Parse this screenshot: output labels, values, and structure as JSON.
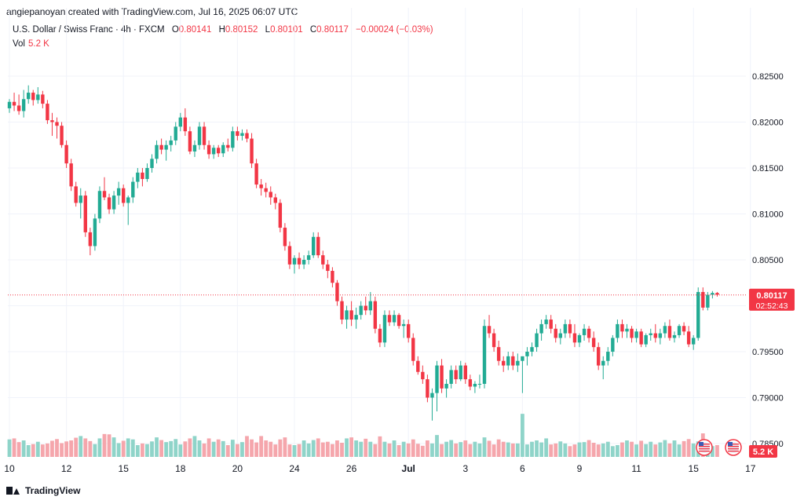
{
  "credit": "angiepanoyan created with TradingView.com, Jul 16, 2025 06:07 UTC",
  "legend": {
    "symbol": "U.S. Dollar / Swiss Franc · 4h · FXCM",
    "open_key": "O",
    "open": "0.80141",
    "high_key": "H",
    "high": "0.80152",
    "low_key": "L",
    "low": "0.80101",
    "close_key": "C",
    "close": "0.80117",
    "change": "−0.00024 (−0.03%)",
    "vol_label": "Vol",
    "vol_value": "5.2 K"
  },
  "last_price": {
    "label": "0.80117",
    "countdown": "02:52:43"
  },
  "volume_badge": "5.2 K",
  "footer_brand": "TradingView",
  "colors": {
    "up": "#22ab94",
    "down": "#f23645",
    "up_vol": "#8fd4c9",
    "down_vol": "#f5a6ac"
  },
  "chart_data": {
    "type": "candlestick",
    "interval": "4h",
    "ylim": [
      0.7835,
      0.8265
    ],
    "y_ticks": [
      "0.82500",
      "0.82000",
      "0.81500",
      "0.81000",
      "0.80500",
      "0.80000",
      "0.79500",
      "0.79000",
      "0.78500"
    ],
    "x_ticks": [
      {
        "label": "10",
        "bar": 0
      },
      {
        "label": "12",
        "bar": 12
      },
      {
        "label": "15",
        "bar": 24
      },
      {
        "label": "18",
        "bar": 36
      },
      {
        "label": "20",
        "bar": 48
      },
      {
        "label": "24",
        "bar": 60
      },
      {
        "label": "26",
        "bar": 72
      },
      {
        "label": "Jul",
        "bar": 84
      },
      {
        "label": "3",
        "bar": 96
      },
      {
        "label": "6",
        "bar": 108
      },
      {
        "label": "9",
        "bar": 120
      },
      {
        "label": "11",
        "bar": 132
      },
      {
        "label": "15",
        "bar": 144
      },
      {
        "label": "17",
        "bar": 156
      }
    ],
    "series": [
      {
        "values": [
          [
            0.8215,
            0.8225,
            0.821,
            0.8222
          ],
          [
            0.8222,
            0.8232,
            0.8212,
            0.8218
          ],
          [
            0.8218,
            0.823,
            0.8208,
            0.8212
          ],
          [
            0.8212,
            0.8235,
            0.8205,
            0.8225
          ],
          [
            0.8225,
            0.824,
            0.822,
            0.8232
          ],
          [
            0.8232,
            0.8235,
            0.8218,
            0.8224
          ],
          [
            0.8224,
            0.8238,
            0.822,
            0.823
          ],
          [
            0.823,
            0.8234,
            0.8215,
            0.822
          ],
          [
            0.822,
            0.8224,
            0.8198,
            0.8202
          ],
          [
            0.8202,
            0.821,
            0.8185,
            0.82
          ],
          [
            0.82,
            0.8205,
            0.8182,
            0.8196
          ],
          [
            0.8196,
            0.82,
            0.8172,
            0.8175
          ],
          [
            0.8175,
            0.818,
            0.815,
            0.8155
          ],
          [
            0.8155,
            0.816,
            0.8125,
            0.813
          ],
          [
            0.813,
            0.8135,
            0.8108,
            0.8112
          ],
          [
            0.8112,
            0.8128,
            0.8095,
            0.812
          ],
          [
            0.812,
            0.8125,
            0.8075,
            0.808
          ],
          [
            0.808,
            0.8085,
            0.8055,
            0.8065
          ],
          [
            0.8065,
            0.81,
            0.806,
            0.8095
          ],
          [
            0.8095,
            0.813,
            0.809,
            0.8125
          ],
          [
            0.8125,
            0.814,
            0.8115,
            0.8118
          ],
          [
            0.8118,
            0.8122,
            0.81,
            0.8105
          ],
          [
            0.8105,
            0.8125,
            0.81,
            0.812
          ],
          [
            0.812,
            0.8135,
            0.811,
            0.8128
          ],
          [
            0.8128,
            0.8132,
            0.8108,
            0.8112
          ],
          [
            0.8112,
            0.812,
            0.8088,
            0.8118
          ],
          [
            0.8118,
            0.814,
            0.8112,
            0.8135
          ],
          [
            0.8135,
            0.815,
            0.8128,
            0.8145
          ],
          [
            0.8145,
            0.815,
            0.813,
            0.8138
          ],
          [
            0.8138,
            0.8155,
            0.8135,
            0.815
          ],
          [
            0.815,
            0.8165,
            0.8145,
            0.816
          ],
          [
            0.816,
            0.818,
            0.8155,
            0.8175
          ],
          [
            0.8175,
            0.8182,
            0.8165,
            0.817
          ],
          [
            0.817,
            0.818,
            0.8158,
            0.8175
          ],
          [
            0.8175,
            0.8185,
            0.8168,
            0.818
          ],
          [
            0.818,
            0.82,
            0.8175,
            0.8195
          ],
          [
            0.8195,
            0.821,
            0.819,
            0.8205
          ],
          [
            0.8205,
            0.8215,
            0.8185,
            0.819
          ],
          [
            0.819,
            0.8195,
            0.8165,
            0.8168
          ],
          [
            0.8168,
            0.818,
            0.8162,
            0.8175
          ],
          [
            0.8175,
            0.82,
            0.817,
            0.8195
          ],
          [
            0.8195,
            0.82,
            0.817,
            0.8175
          ],
          [
            0.8175,
            0.818,
            0.816,
            0.8165
          ],
          [
            0.8165,
            0.8175,
            0.816,
            0.8172
          ],
          [
            0.8172,
            0.8175,
            0.8162,
            0.8166
          ],
          [
            0.8166,
            0.8178,
            0.8162,
            0.8175
          ],
          [
            0.8175,
            0.8182,
            0.8168,
            0.8172
          ],
          [
            0.8172,
            0.8195,
            0.8168,
            0.819
          ],
          [
            0.819,
            0.8195,
            0.818,
            0.8185
          ],
          [
            0.8185,
            0.8192,
            0.818,
            0.8188
          ],
          [
            0.8188,
            0.8192,
            0.8178,
            0.8182
          ],
          [
            0.8182,
            0.8188,
            0.815,
            0.8155
          ],
          [
            0.8155,
            0.816,
            0.8128,
            0.8132
          ],
          [
            0.8132,
            0.8138,
            0.812,
            0.8128
          ],
          [
            0.8128,
            0.8134,
            0.8118,
            0.8124
          ],
          [
            0.8124,
            0.813,
            0.811,
            0.8118
          ],
          [
            0.8118,
            0.8122,
            0.8105,
            0.8112
          ],
          [
            0.8112,
            0.8116,
            0.808,
            0.8085
          ],
          [
            0.8085,
            0.809,
            0.806,
            0.8065
          ],
          [
            0.8065,
            0.807,
            0.804,
            0.8045
          ],
          [
            0.8045,
            0.8055,
            0.8035,
            0.8052
          ],
          [
            0.8052,
            0.8058,
            0.804,
            0.8045
          ],
          [
            0.8045,
            0.8055,
            0.804,
            0.805
          ],
          [
            0.805,
            0.806,
            0.8045,
            0.8055
          ],
          [
            0.8055,
            0.808,
            0.8052,
            0.8075
          ],
          [
            0.8075,
            0.808,
            0.8052,
            0.8055
          ],
          [
            0.8055,
            0.806,
            0.804,
            0.8045
          ],
          [
            0.8045,
            0.805,
            0.803,
            0.8038
          ],
          [
            0.8038,
            0.8042,
            0.802,
            0.8025
          ],
          [
            0.8025,
            0.8028,
            0.8,
            0.8005
          ],
          [
            0.8005,
            0.801,
            0.798,
            0.7985
          ],
          [
            0.7985,
            0.8,
            0.7975,
            0.7995
          ],
          [
            0.7995,
            0.8005,
            0.7978,
            0.7985
          ],
          [
            0.7985,
            0.7998,
            0.7975,
            0.799
          ],
          [
            0.799,
            0.8005,
            0.7985,
            0.8
          ],
          [
            0.8,
            0.801,
            0.799,
            0.7995
          ],
          [
            0.7995,
            0.8015,
            0.799,
            0.8005
          ],
          [
            0.8005,
            0.801,
            0.797,
            0.7975
          ],
          [
            0.7975,
            0.798,
            0.7955,
            0.796
          ],
          [
            0.796,
            0.7995,
            0.7955,
            0.799
          ],
          [
            0.799,
            0.7995,
            0.7978,
            0.7982
          ],
          [
            0.7982,
            0.7995,
            0.7978,
            0.799
          ],
          [
            0.799,
            0.7992,
            0.7975,
            0.7978
          ],
          [
            0.7978,
            0.7985,
            0.7965,
            0.798
          ],
          [
            0.798,
            0.7985,
            0.796,
            0.7965
          ],
          [
            0.7965,
            0.797,
            0.7935,
            0.794
          ],
          [
            0.794,
            0.7945,
            0.7925,
            0.7928
          ],
          [
            0.7928,
            0.7935,
            0.7915,
            0.792
          ],
          [
            0.792,
            0.7925,
            0.7895,
            0.79
          ],
          [
            0.79,
            0.791,
            0.7875,
            0.7905
          ],
          [
            0.7905,
            0.794,
            0.7885,
            0.7935
          ],
          [
            0.7935,
            0.7942,
            0.7905,
            0.791
          ],
          [
            0.791,
            0.792,
            0.79,
            0.7915
          ],
          [
            0.7915,
            0.7935,
            0.791,
            0.793
          ],
          [
            0.793,
            0.7935,
            0.7915,
            0.792
          ],
          [
            0.792,
            0.794,
            0.7918,
            0.7935
          ],
          [
            0.7935,
            0.7938,
            0.7915,
            0.792
          ],
          [
            0.792,
            0.7925,
            0.7908,
            0.7912
          ],
          [
            0.7912,
            0.7918,
            0.7905,
            0.7915
          ],
          [
            0.7915,
            0.7925,
            0.791,
            0.7915
          ],
          [
            0.7915,
            0.7985,
            0.791,
            0.7978
          ],
          [
            0.7978,
            0.799,
            0.7965,
            0.797
          ],
          [
            0.797,
            0.7975,
            0.795,
            0.7955
          ],
          [
            0.7955,
            0.7962,
            0.7935,
            0.794
          ],
          [
            0.794,
            0.7945,
            0.7928,
            0.7935
          ],
          [
            0.7935,
            0.795,
            0.793,
            0.7945
          ],
          [
            0.7945,
            0.795,
            0.793,
            0.7935
          ],
          [
            0.7935,
            0.7948,
            0.7928,
            0.794
          ],
          [
            0.794,
            0.7942,
            0.7905,
            0.7945
          ],
          [
            0.7945,
            0.7955,
            0.7935,
            0.795
          ],
          [
            0.795,
            0.796,
            0.7945,
            0.7955
          ],
          [
            0.7955,
            0.7975,
            0.795,
            0.797
          ],
          [
            0.797,
            0.7985,
            0.7962,
            0.798
          ],
          [
            0.798,
            0.799,
            0.7975,
            0.7985
          ],
          [
            0.7985,
            0.799,
            0.797,
            0.7975
          ],
          [
            0.7975,
            0.798,
            0.796,
            0.7965
          ],
          [
            0.7965,
            0.7975,
            0.7958,
            0.797
          ],
          [
            0.797,
            0.7985,
            0.7965,
            0.798
          ],
          [
            0.798,
            0.7985,
            0.7965,
            0.797
          ],
          [
            0.797,
            0.798,
            0.7955,
            0.796
          ],
          [
            0.796,
            0.797,
            0.7955,
            0.7968
          ],
          [
            0.7968,
            0.798,
            0.7962,
            0.7975
          ],
          [
            0.7975,
            0.7978,
            0.796,
            0.7965
          ],
          [
            0.7965,
            0.7972,
            0.795,
            0.7955
          ],
          [
            0.7955,
            0.796,
            0.793,
            0.7935
          ],
          [
            0.7935,
            0.7945,
            0.792,
            0.794
          ],
          [
            0.794,
            0.7955,
            0.7935,
            0.795
          ],
          [
            0.795,
            0.7968,
            0.7945,
            0.7965
          ],
          [
            0.7965,
            0.7985,
            0.796,
            0.798
          ],
          [
            0.798,
            0.7985,
            0.7965,
            0.7972
          ],
          [
            0.7972,
            0.798,
            0.7965,
            0.7975
          ],
          [
            0.7975,
            0.7978,
            0.796,
            0.7965
          ],
          [
            0.7965,
            0.7975,
            0.796,
            0.7972
          ],
          [
            0.7972,
            0.7975,
            0.7955,
            0.7958
          ],
          [
            0.7958,
            0.797,
            0.7955,
            0.7968
          ],
          [
            0.7968,
            0.7975,
            0.7962,
            0.797
          ],
          [
            0.797,
            0.798,
            0.796,
            0.7965
          ],
          [
            0.7965,
            0.7975,
            0.7958,
            0.797
          ],
          [
            0.797,
            0.7982,
            0.7965,
            0.7978
          ],
          [
            0.7978,
            0.7985,
            0.7962,
            0.7965
          ],
          [
            0.7965,
            0.7972,
            0.796,
            0.7968
          ],
          [
            0.7968,
            0.798,
            0.7965,
            0.7978
          ],
          [
            0.7978,
            0.7982,
            0.7968,
            0.7972
          ],
          [
            0.7972,
            0.7978,
            0.7955,
            0.7958
          ],
          [
            0.7958,
            0.7968,
            0.7952,
            0.7965
          ],
          [
            0.7965,
            0.802,
            0.7962,
            0.8015
          ],
          [
            0.8015,
            0.802,
            0.7995,
            0.7998
          ],
          [
            0.7998,
            0.8015,
            0.7995,
            0.8012
          ],
          [
            0.8012,
            0.8016,
            0.8008,
            0.8014
          ],
          [
            0.8014,
            0.8015,
            0.801,
            0.8012
          ]
        ]
      }
    ],
    "volume": [
      52,
      55,
      44,
      49,
      35,
      38,
      45,
      37,
      40,
      48,
      53,
      41,
      46,
      49,
      57,
      62,
      55,
      47,
      38,
      55,
      68,
      67,
      58,
      41,
      48,
      55,
      52,
      35,
      40,
      38,
      46,
      58,
      50,
      44,
      47,
      53,
      37,
      46,
      55,
      62,
      49,
      40,
      55,
      45,
      52,
      47,
      35,
      51,
      38,
      44,
      62,
      52,
      43,
      62,
      49,
      45,
      37,
      52,
      58,
      37,
      35,
      38,
      49,
      40,
      50,
      55,
      43,
      45,
      38,
      49,
      42,
      55,
      58,
      49,
      45,
      54,
      45,
      38,
      61,
      45,
      40,
      49,
      35,
      45,
      40,
      52,
      39,
      33,
      49,
      40,
      65,
      38,
      45,
      50,
      40,
      44,
      49,
      38,
      45,
      40,
      58,
      48,
      37,
      52,
      45,
      43,
      40,
      40,
      128,
      37,
      45,
      49,
      43,
      55,
      37,
      40,
      46,
      40,
      32,
      37,
      43,
      44,
      50,
      42,
      37,
      40,
      45,
      32,
      35,
      43,
      49,
      45,
      37,
      48,
      38,
      45,
      37,
      43,
      50,
      40,
      49,
      37,
      47,
      53,
      40,
      46,
      70,
      44,
      32,
      35
    ],
    "last_price": 0.80117
  }
}
